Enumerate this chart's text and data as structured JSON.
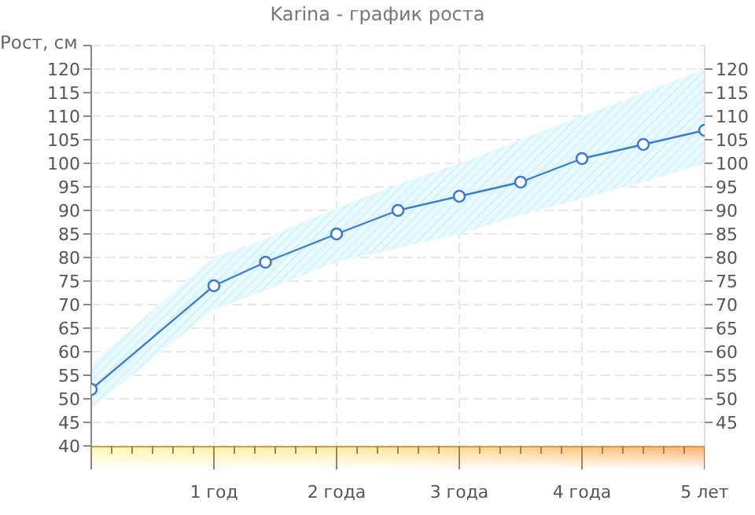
{
  "chart_data": {
    "type": "line",
    "title": "Karina - график роста",
    "ylabel": "Рост, см",
    "x": [
      0,
      1,
      1.42,
      2,
      2.5,
      3,
      3.5,
      4,
      4.5,
      5
    ],
    "series": [
      {
        "color": "#3a7bd5",
        "values": [
          52,
          74,
          79,
          85,
          90,
          93,
          96,
          101,
          104,
          107
        ],
        "lower": [
          48,
          69,
          73,
          79,
          82,
          85,
          89,
          92.5,
          96,
          100
        ],
        "upper": [
          57.5,
          80,
          84,
          90.5,
          95.5,
          100,
          105,
          110,
          115,
          120
        ]
      }
    ],
    "xlim": [
      0,
      5
    ],
    "xticks": [
      {
        "value": 0,
        "label": null
      },
      {
        "value": 1,
        "label": "1 год"
      },
      {
        "value": 2,
        "label": "2 года"
      },
      {
        "value": 3,
        "label": "3 года"
      },
      {
        "value": 4,
        "label": "4 года"
      },
      {
        "value": 5,
        "label": "5 лет"
      }
    ],
    "ylim": [
      35,
      125
    ],
    "yticks": [
      40,
      45,
      50,
      55,
      60,
      65,
      70,
      75,
      80,
      85,
      90,
      95,
      100,
      105,
      110,
      115,
      120,
      {
        "value": 125,
        "label": null
      }
    ],
    "y2lim": [
      35,
      125
    ],
    "y2ticks": [
      45,
      50,
      55,
      60,
      65,
      70,
      75,
      80,
      85,
      90,
      95,
      100,
      105,
      110,
      115,
      120
    ],
    "grid": true,
    "marker": "circle",
    "line_style": "solid"
  }
}
